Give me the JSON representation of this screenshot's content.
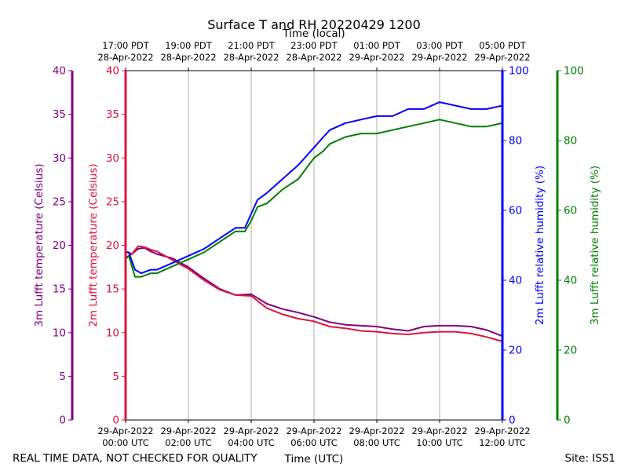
{
  "chart_data": {
    "type": "line",
    "title": "Surface T and RH 20220429 1200",
    "top_axis_title": "Time (local)",
    "xlabel": "Time (UTC)",
    "footer_left": "REAL TIME DATA, NOT CHECKED FOR QUALITY",
    "footer_right": "Site: ISS1",
    "x_range_hours": [
      0,
      12
    ],
    "bottom_ticks": [
      {
        "hour": 0,
        "line1": "29-Apr-2022",
        "line2": "00:00 UTC"
      },
      {
        "hour": 2,
        "line1": "29-Apr-2022",
        "line2": "02:00 UTC"
      },
      {
        "hour": 4,
        "line1": "29-Apr-2022",
        "line2": "04:00 UTC"
      },
      {
        "hour": 6,
        "line1": "29-Apr-2022",
        "line2": "06:00 UTC"
      },
      {
        "hour": 8,
        "line1": "29-Apr-2022",
        "line2": "08:00 UTC"
      },
      {
        "hour": 10,
        "line1": "29-Apr-2022",
        "line2": "10:00 UTC"
      },
      {
        "hour": 12,
        "line1": "29-Apr-2022",
        "line2": "12:00 UTC"
      }
    ],
    "top_ticks": [
      {
        "hour": 0,
        "line1": "17:00 PDT",
        "line2": "28-Apr-2022"
      },
      {
        "hour": 2,
        "line1": "19:00 PDT",
        "line2": "28-Apr-2022"
      },
      {
        "hour": 4,
        "line1": "21:00 PDT",
        "line2": "28-Apr-2022"
      },
      {
        "hour": 6,
        "line1": "23:00 PDT",
        "line2": "28-Apr-2022"
      },
      {
        "hour": 8,
        "line1": "01:00 PDT",
        "line2": "29-Apr-2022"
      },
      {
        "hour": 10,
        "line1": "03:00 PDT",
        "line2": "29-Apr-2022"
      },
      {
        "hour": 12,
        "line1": "05:00 PDT",
        "line2": "29-Apr-2022"
      }
    ],
    "axes": [
      {
        "id": "t3m",
        "label": "3m Lufft temperature (Celsius)",
        "color": "#800080",
        "range": [
          0,
          40
        ],
        "ticks": [
          0,
          5,
          10,
          15,
          20,
          25,
          30,
          35,
          40
        ]
      },
      {
        "id": "t2m",
        "label": "2m Lufft temperature (Celsius)",
        "color": "#dc143c",
        "range": [
          0,
          40
        ],
        "ticks": [
          0,
          5,
          10,
          15,
          20,
          25,
          30,
          35,
          40
        ]
      },
      {
        "id": "rh2m",
        "label": "2m Lufft relative humidity (%)",
        "color": "#0000ff",
        "range": [
          0,
          100
        ],
        "ticks": [
          0,
          20,
          40,
          60,
          80,
          100
        ]
      },
      {
        "id": "rh3m",
        "label": "3m Lufft relative humidity (%)",
        "color": "#008000",
        "range": [
          0,
          100
        ],
        "ticks": [
          0,
          20,
          40,
          60,
          80,
          100
        ]
      }
    ],
    "series": [
      {
        "name": "3m Lufft temperature",
        "axis": "t3m",
        "color": "#800080",
        "x": [
          0,
          0.2,
          0.4,
          0.6,
          0.8,
          1.0,
          1.5,
          2.0,
          2.5,
          3.0,
          3.5,
          4.0,
          4.5,
          5.0,
          5.5,
          6.0,
          6.5,
          7.0,
          7.5,
          8.0,
          8.5,
          9.0,
          9.5,
          10.0,
          10.5,
          11.0,
          11.5,
          12.0
        ],
        "values": [
          19.3,
          19.0,
          19.6,
          19.7,
          19.3,
          19.0,
          18.5,
          17.5,
          16.2,
          15.0,
          14.3,
          14.4,
          13.3,
          12.7,
          12.3,
          11.8,
          11.2,
          10.9,
          10.8,
          10.7,
          10.4,
          10.2,
          10.7,
          10.8,
          10.8,
          10.7,
          10.3,
          9.6
        ]
      },
      {
        "name": "2m Lufft temperature",
        "axis": "t2m",
        "color": "#dc143c",
        "x": [
          0,
          0.2,
          0.4,
          0.6,
          0.8,
          1.0,
          1.5,
          2.0,
          2.5,
          3.0,
          3.5,
          4.0,
          4.5,
          5.0,
          5.5,
          6.0,
          6.5,
          7.0,
          7.5,
          8.0,
          8.5,
          9.0,
          9.5,
          10.0,
          10.5,
          11.0,
          11.5,
          12.0
        ],
        "values": [
          18.6,
          19.0,
          19.9,
          19.8,
          19.5,
          19.3,
          18.3,
          17.3,
          16.0,
          14.9,
          14.3,
          14.2,
          12.8,
          12.1,
          11.6,
          11.3,
          10.7,
          10.5,
          10.2,
          10.1,
          9.9,
          9.8,
          10.0,
          10.1,
          10.1,
          9.9,
          9.5,
          9.0
        ]
      },
      {
        "name": "2m Lufft relative humidity",
        "axis": "rh2m",
        "color": "#0000ff",
        "x": [
          0,
          0.1,
          0.3,
          0.5,
          0.8,
          1.0,
          1.5,
          2.0,
          2.5,
          3.0,
          3.5,
          3.8,
          4.0,
          4.2,
          4.5,
          5.0,
          5.5,
          6.0,
          6.3,
          6.5,
          7.0,
          7.5,
          8.0,
          8.5,
          9.0,
          9.5,
          10.0,
          10.5,
          11.0,
          11.5,
          12.0
        ],
        "values": [
          48,
          48,
          43,
          42,
          43,
          43,
          45,
          47,
          49,
          52,
          55,
          55,
          59,
          63,
          65,
          69,
          73,
          78,
          81,
          83,
          85,
          86,
          87,
          87,
          89,
          89,
          91,
          90,
          89,
          89,
          90
        ]
      },
      {
        "name": "3m Lufft relative humidity",
        "axis": "rh3m",
        "color": "#008000",
        "x": [
          0,
          0.1,
          0.3,
          0.5,
          0.8,
          1.0,
          1.5,
          2.0,
          2.5,
          3.0,
          3.5,
          3.8,
          4.0,
          4.2,
          4.5,
          5.0,
          5.5,
          6.0,
          6.3,
          6.5,
          7.0,
          7.5,
          8.0,
          8.5,
          9.0,
          9.5,
          10.0,
          10.5,
          11.0,
          11.5,
          12.0
        ],
        "values": [
          46,
          47,
          41,
          41,
          42,
          42,
          44,
          46,
          48,
          51,
          54,
          54,
          57,
          61,
          62,
          66,
          69,
          75,
          77,
          79,
          81,
          82,
          82,
          83,
          84,
          85,
          86,
          85,
          84,
          84,
          85
        ]
      }
    ]
  }
}
